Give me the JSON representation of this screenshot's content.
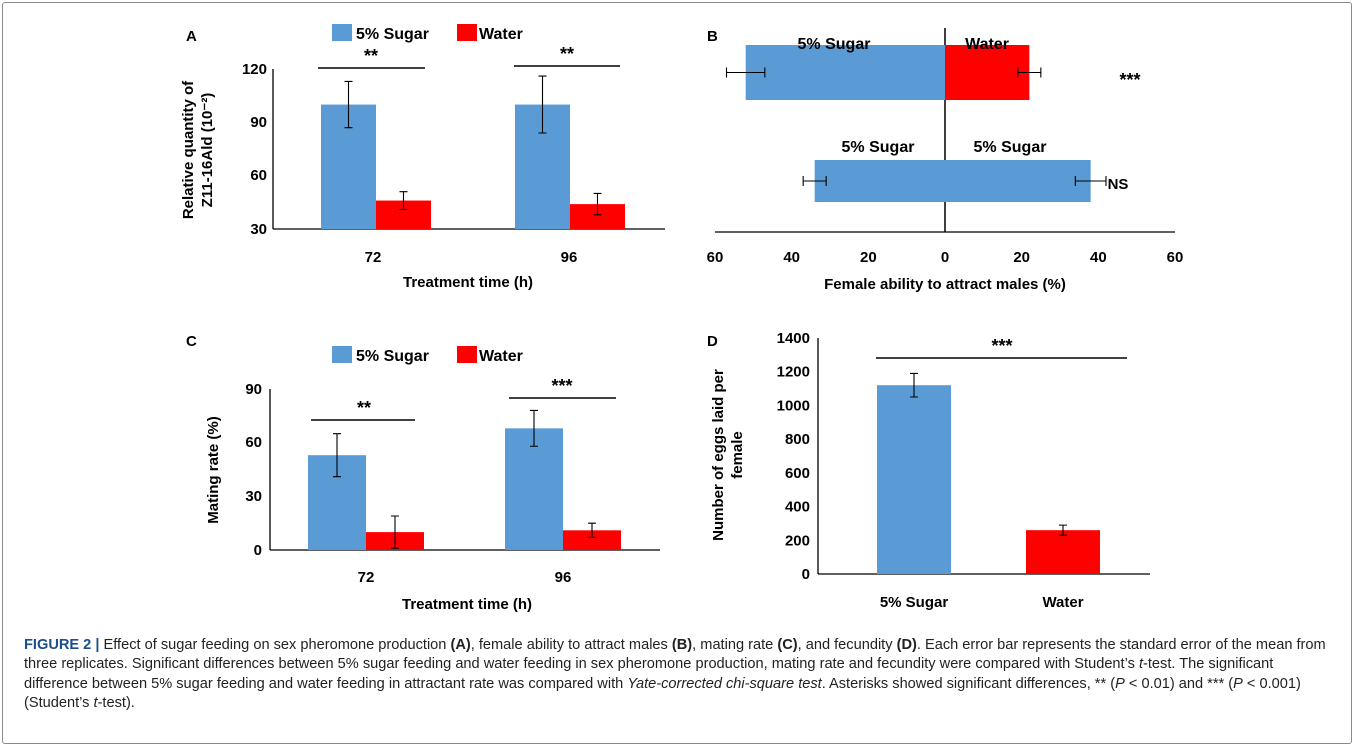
{
  "legend": {
    "sugar": "5% Sugar",
    "water": "Water"
  },
  "colors": {
    "sugar": "#5b9bd5",
    "water": "#ff0000",
    "axis": "#000000"
  },
  "panels": {
    "A": {
      "letter": "A",
      "ylabel1": "Relative quantity of",
      "ylabel2": "Z11-16Ald (10⁻²)",
      "xlabel": "Treatment time (h)"
    },
    "B": {
      "letter": "B",
      "xlabel": "Female ability to attract males (%)",
      "row1_left": "5% Sugar",
      "row1_right": "Water",
      "row1_sig": "***",
      "row2_left": "5% Sugar",
      "row2_right": "5% Sugar",
      "row2_sig": "NS"
    },
    "C": {
      "letter": "C",
      "ylabel": "Mating rate (%)",
      "xlabel": "Treatment time (h)"
    },
    "D": {
      "letter": "D",
      "ylabel1": "Number of eggs laid per",
      "ylabel2": "female"
    }
  },
  "chart_data": [
    {
      "panel": "A",
      "type": "bar",
      "categories": [
        "72",
        "96"
      ],
      "series": [
        {
          "name": "5% Sugar",
          "values": [
            100,
            100
          ],
          "err": [
            13,
            16
          ]
        },
        {
          "name": "Water",
          "values": [
            46,
            44
          ],
          "err": [
            5,
            6
          ]
        }
      ],
      "significance": [
        "**",
        "**"
      ],
      "ylim": [
        30,
        120
      ],
      "yticks": [
        "30",
        "60",
        "90",
        "120"
      ]
    },
    {
      "panel": "B",
      "type": "bar",
      "orientation": "horizontal-diverging",
      "rows": [
        {
          "left": 52,
          "left_err": 5,
          "right": 22,
          "right_err": 3
        },
        {
          "left": 34,
          "left_err": 3,
          "right": 38,
          "right_err": 4
        }
      ],
      "xlim": [
        -60,
        60
      ],
      "xticks": [
        "60",
        "40",
        "20",
        "0",
        "20",
        "40",
        "60"
      ]
    },
    {
      "panel": "C",
      "type": "bar",
      "categories": [
        "72",
        "96"
      ],
      "series": [
        {
          "name": "5% Sugar",
          "values": [
            53,
            68
          ],
          "err": [
            12,
            10
          ]
        },
        {
          "name": "Water",
          "values": [
            10,
            11
          ],
          "err": [
            9,
            4
          ]
        }
      ],
      "significance": [
        "**",
        "***"
      ],
      "ylim": [
        0,
        90
      ],
      "yticks": [
        "0",
        "30",
        "60",
        "90"
      ]
    },
    {
      "panel": "D",
      "type": "bar",
      "categories": [
        "5% Sugar",
        "Water"
      ],
      "values": [
        1120,
        260
      ],
      "err": [
        70,
        30
      ],
      "significance": "***",
      "ylim": [
        0,
        1400
      ],
      "yticks": [
        "0",
        "200",
        "400",
        "600",
        "800",
        "1000",
        "1200",
        "1400"
      ]
    }
  ],
  "caption": {
    "lead": "FIGURE 2 |",
    "t1": " Effect of sugar feeding on sex pheromone production ",
    "pA": "(A)",
    "t2": ", female ability to attract males ",
    "pB": "(B)",
    "t3": ", mating rate ",
    "pC": "(C)",
    "t4": ", and fecundity ",
    "pD": "(D)",
    "t5": ". Each error bar represents the standard error of the mean from three replicates. Significant differences between 5% sugar feeding and water feeding in sex pheromone production, mating rate and fecundity were compared with Student’s ",
    "ttest1": "t",
    "t6": "-test. The significant difference between 5% sugar feeding and water feeding in attractant rate was compared with ",
    "yate": "Yate-corrected chi-square test",
    "t7": ". Asterisks showed significant differences, ** (",
    "p1": "P",
    "t8": " < 0.01) and *** (",
    "p2": "P",
    "t9": " < 0.001) (Student’s ",
    "ttest2": "t",
    "t10": "-test)."
  }
}
